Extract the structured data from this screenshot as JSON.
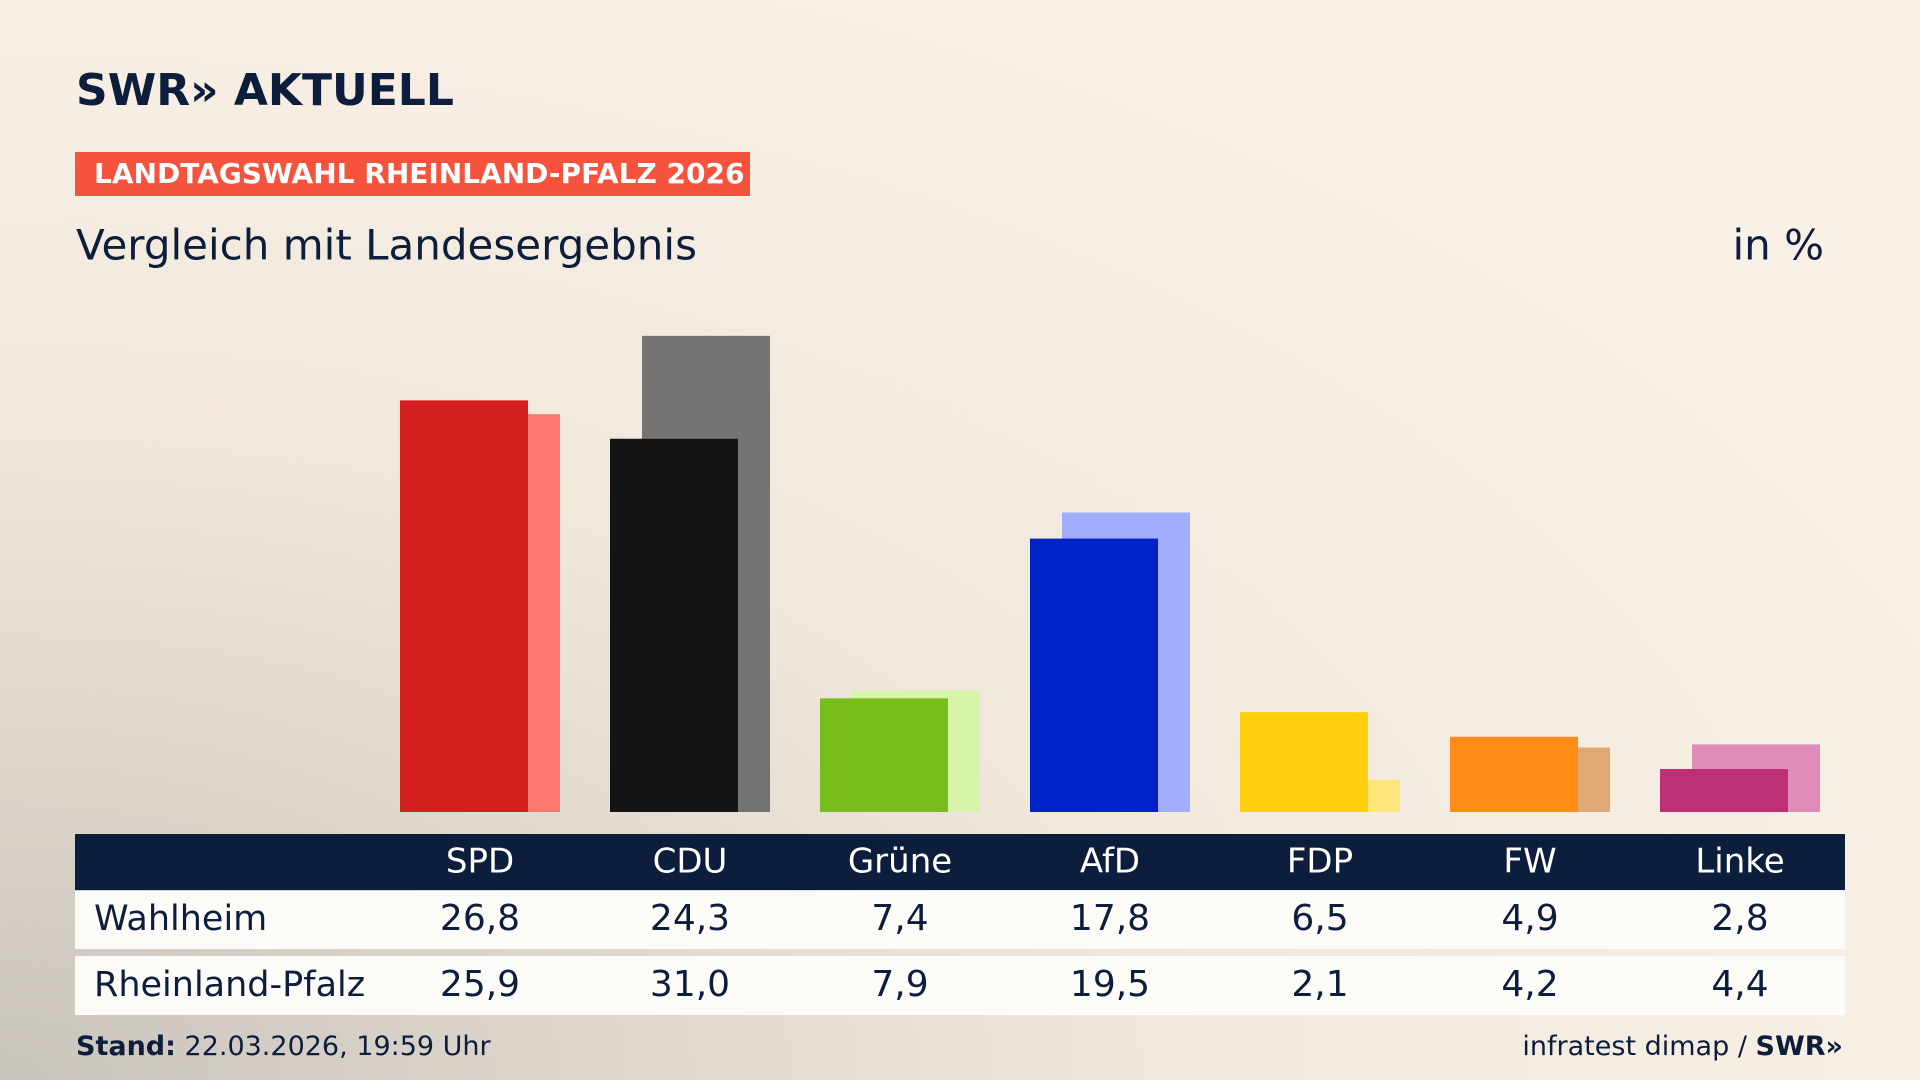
{
  "chart_data": {
    "type": "bar",
    "logo": "SWR» AKTUELL",
    "title": "LANDTAGSWAHL RHEINLAND-PFALZ 2026",
    "subtitle": "Vergleich mit Landesergebnis",
    "unit_label": "in %",
    "categories": [
      "SPD",
      "CDU",
      "Grüne",
      "AfD",
      "FDP",
      "FW",
      "Linke"
    ],
    "series": [
      {
        "name": "Wahlheim",
        "values": [
          26.8,
          24.3,
          7.4,
          17.8,
          6.5,
          4.9,
          2.8
        ],
        "value_labels": [
          "26,8",
          "24,3",
          "7,4",
          "17,8",
          "6,5",
          "4,9",
          "2,8"
        ],
        "colors": [
          "#d62020",
          "#141414",
          "#79bd1c",
          "#0022c8",
          "#ffcf0d",
          "#ff8c17",
          "#bd3075"
        ]
      },
      {
        "name": "Rheinland-Pfalz",
        "values": [
          25.9,
          31.0,
          7.9,
          19.5,
          2.1,
          4.2,
          4.4
        ],
        "value_labels": [
          "25,9",
          "31,0",
          "7,9",
          "19,5",
          "2,1",
          "4,2",
          "4,4"
        ],
        "colors": [
          "#ff7771",
          "#747371",
          "#d6f5aa",
          "#a0acfc",
          "#ffe57a",
          "#e0a874",
          "#e08cb8"
        ]
      }
    ],
    "footer_label": "Stand:",
    "footer_date": "22.03.2026, 19:59 Uhr",
    "source": "infratest dimap /",
    "source_logo": "SWR»"
  }
}
